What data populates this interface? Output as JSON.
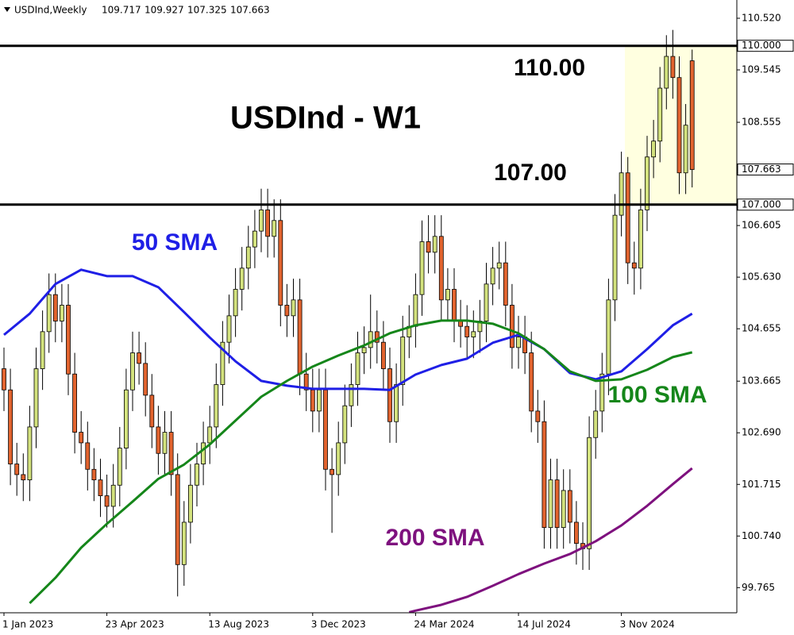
{
  "chart_data": {
    "type": "candlestick",
    "title": "USDInd - W1",
    "symbol": "USDInd,Weekly",
    "categories": [
      "1 Jan 2023",
      null,
      null,
      null,
      null,
      null,
      null,
      null,
      null,
      null,
      null,
      null,
      null,
      null,
      null,
      null,
      "23 Apr 2023",
      null,
      null,
      null,
      null,
      null,
      null,
      null,
      null,
      null,
      null,
      null,
      null,
      null,
      null,
      null,
      "13 Aug 2023",
      null,
      null,
      null,
      null,
      null,
      null,
      null,
      null,
      null,
      null,
      null,
      null,
      null,
      null,
      null,
      "3 Dec 2023",
      null,
      null,
      null,
      null,
      null,
      null,
      null,
      null,
      null,
      null,
      null,
      null,
      null,
      null,
      null,
      "24 Mar 2024",
      null,
      null,
      null,
      null,
      null,
      null,
      null,
      null,
      null,
      null,
      null,
      null,
      null,
      null,
      null,
      "14 Jul 2024",
      null,
      null,
      null,
      null,
      null,
      null,
      null,
      null,
      null,
      null,
      null,
      null,
      null,
      null,
      null,
      "3 Nov 2024",
      null,
      null,
      null,
      null,
      null,
      null,
      null,
      null,
      null,
      null,
      null
    ],
    "open": [
      103.9,
      103.5,
      102.1,
      101.9,
      101.8,
      102.8,
      103.9,
      104.6,
      105.3,
      104.8,
      105.1,
      103.8,
      102.7,
      102.5,
      102.0,
      101.8,
      101.5,
      101.3,
      101.7,
      102.4,
      103.5,
      104.2,
      104.0,
      103.4,
      102.8,
      102.3,
      102.7,
      101.9,
      100.2,
      101.0,
      101.7,
      102.1,
      102.5,
      102.8,
      103.6,
      104.4,
      104.9,
      105.4,
      105.8,
      106.2,
      106.5,
      106.9,
      106.4,
      106.7,
      105.1,
      104.9,
      105.2,
      103.8,
      103.5,
      103.1,
      103.5,
      102.0,
      101.9,
      102.5,
      103.2,
      103.6,
      104.2,
      104.3,
      104.6,
      104.4,
      103.9,
      102.9,
      103.6,
      104.5,
      104.7,
      105.3,
      106.3,
      106.1,
      106.4,
      105.2,
      105.4,
      104.8,
      104.7,
      104.5,
      104.6,
      104.8,
      105.5,
      105.8,
      105.9,
      105.1,
      104.3,
      104.5,
      104.2,
      103.1,
      102.9,
      100.9,
      101.8,
      100.9,
      101.6,
      101.0,
      100.6,
      100.5,
      102.6,
      103.1,
      103.8,
      105.2,
      106.8,
      107.6,
      105.9,
      105.8,
      106.9,
      107.9,
      108.2,
      109.2,
      109.8,
      109.4,
      107.6,
      109.717
    ],
    "high": [
      104.3,
      103.9,
      102.5,
      102.3,
      103.2,
      104.3,
      105.0,
      105.7,
      105.7,
      105.5,
      105.5,
      104.2,
      103.1,
      102.9,
      102.4,
      102.2,
      101.9,
      102.1,
      102.8,
      103.9,
      104.6,
      104.6,
      104.4,
      103.8,
      103.2,
      103.1,
      103.1,
      102.3,
      101.4,
      102.1,
      102.5,
      102.9,
      103.2,
      104.0,
      104.8,
      105.3,
      105.8,
      106.2,
      106.6,
      106.9,
      107.3,
      107.3,
      107.1,
      107.1,
      105.5,
      105.6,
      105.6,
      104.2,
      103.9,
      103.9,
      103.9,
      102.4,
      102.9,
      103.6,
      104.0,
      104.6,
      104.7,
      105.3,
      105.0,
      104.8,
      104.3,
      104.0,
      104.9,
      105.1,
      105.7,
      106.7,
      106.8,
      106.8,
      106.8,
      105.8,
      105.8,
      105.2,
      105.1,
      105.0,
      105.2,
      105.9,
      106.2,
      106.3,
      106.3,
      105.5,
      104.9,
      104.9,
      104.6,
      103.5,
      103.3,
      102.2,
      102.2,
      102.0,
      102.0,
      101.4,
      101.0,
      103.0,
      103.5,
      104.2,
      105.6,
      107.2,
      108.0,
      107.9,
      106.3,
      107.3,
      108.3,
      108.6,
      109.6,
      110.2,
      110.3,
      109.8,
      108.9,
      109.927
    ],
    "low": [
      103.1,
      101.7,
      101.5,
      101.4,
      101.4,
      102.4,
      103.5,
      104.2,
      104.4,
      104.4,
      103.4,
      102.3,
      102.1,
      101.6,
      101.4,
      101.1,
      100.9,
      100.9,
      101.3,
      102.0,
      103.1,
      103.6,
      103.0,
      102.4,
      101.9,
      101.9,
      101.5,
      99.6,
      99.8,
      100.6,
      101.3,
      101.7,
      102.1,
      102.4,
      103.2,
      104.0,
      104.5,
      105.0,
      105.4,
      105.8,
      106.1,
      106.0,
      106.0,
      104.7,
      104.5,
      104.5,
      103.4,
      103.1,
      102.7,
      102.7,
      101.6,
      100.8,
      101.5,
      102.1,
      102.8,
      103.2,
      103.8,
      103.9,
      104.0,
      103.5,
      102.5,
      102.5,
      103.2,
      104.1,
      104.3,
      104.9,
      105.7,
      105.7,
      104.8,
      104.8,
      104.4,
      104.3,
      104.1,
      104.1,
      104.2,
      104.4,
      105.1,
      105.4,
      104.7,
      103.9,
      103.9,
      103.8,
      102.7,
      102.5,
      100.5,
      100.5,
      100.5,
      100.5,
      100.6,
      100.2,
      100.1,
      100.1,
      102.2,
      102.7,
      103.4,
      104.8,
      106.4,
      105.5,
      105.3,
      105.4,
      106.5,
      107.5,
      107.8,
      108.8,
      109.0,
      107.2,
      107.2,
      107.325
    ],
    "close": [
      103.5,
      102.1,
      101.9,
      101.8,
      102.8,
      103.9,
      104.6,
      105.3,
      104.8,
      105.1,
      103.8,
      102.7,
      102.5,
      102.0,
      101.8,
      101.5,
      101.3,
      101.7,
      102.4,
      103.5,
      104.2,
      104.0,
      103.4,
      102.8,
      102.3,
      102.7,
      101.9,
      100.2,
      101.0,
      101.7,
      102.1,
      102.5,
      102.8,
      103.6,
      104.4,
      104.9,
      105.4,
      105.8,
      106.2,
      106.5,
      106.9,
      106.4,
      106.7,
      105.1,
      104.9,
      105.2,
      103.8,
      103.5,
      103.1,
      103.5,
      102.0,
      101.9,
      102.5,
      103.2,
      103.6,
      104.2,
      104.3,
      104.6,
      104.4,
      103.9,
      102.9,
      103.6,
      104.5,
      104.7,
      105.3,
      106.3,
      106.1,
      106.4,
      105.2,
      105.4,
      104.8,
      104.7,
      104.5,
      104.6,
      104.8,
      105.5,
      105.8,
      105.9,
      105.1,
      104.3,
      104.5,
      104.2,
      103.1,
      102.9,
      100.9,
      101.8,
      100.9,
      101.6,
      101.0,
      100.6,
      100.5,
      102.6,
      103.1,
      103.8,
      105.2,
      106.8,
      107.6,
      105.9,
      105.8,
      106.9,
      107.9,
      108.2,
      109.2,
      109.8,
      109.4,
      107.6,
      108.5,
      107.663
    ],
    "up_color": "#d3e27e",
    "down_color": "#e2642f",
    "series": [
      {
        "name": "50 SMA",
        "color": "#1f1fe6",
        "x": [
          0,
          4,
          8,
          12,
          16,
          20,
          24,
          28,
          32,
          36,
          40,
          44,
          48,
          52,
          56,
          60,
          64,
          68,
          72,
          76,
          80,
          84,
          88,
          92,
          96,
          100,
          104,
          107
        ],
        "values": [
          104.54,
          104.94,
          105.5,
          105.77,
          105.65,
          105.65,
          105.44,
          104.97,
          104.49,
          104.04,
          103.67,
          103.58,
          103.52,
          103.52,
          103.52,
          103.5,
          103.79,
          103.97,
          104.09,
          104.39,
          104.54,
          104.27,
          103.82,
          103.7,
          103.85,
          104.27,
          104.72,
          104.94
        ]
      },
      {
        "name": "100 SMA",
        "color": "#15861a",
        "x": [
          4,
          8,
          12,
          16,
          20,
          24,
          28,
          32,
          36,
          40,
          44,
          48,
          52,
          56,
          60,
          64,
          68,
          72,
          76,
          80,
          84,
          88,
          92,
          96,
          100,
          104,
          107
        ],
        "values": [
          99.47,
          99.95,
          100.52,
          100.97,
          101.39,
          101.82,
          102.09,
          102.47,
          102.92,
          103.37,
          103.67,
          103.94,
          104.15,
          104.34,
          104.57,
          104.72,
          104.81,
          104.81,
          104.75,
          104.57,
          104.27,
          103.85,
          103.67,
          103.7,
          103.88,
          104.12,
          104.21
        ]
      },
      {
        "name": "200 SMA",
        "color": "#7e117e",
        "x": [
          63,
          64,
          68,
          72,
          76,
          80,
          84,
          88,
          92,
          96,
          100,
          104,
          107
        ],
        "values": [
          99.3,
          99.33,
          99.44,
          99.59,
          99.8,
          100.02,
          100.22,
          100.4,
          100.64,
          100.94,
          101.31,
          101.72,
          102.02
        ]
      }
    ],
    "levels": [
      {
        "value": 110,
        "label": "110.000",
        "annotation": "110.00"
      },
      {
        "value": 107,
        "label": "107.000",
        "annotation": "107.00"
      }
    ],
    "ylim": [
      99.29,
      110.865
    ],
    "yticks": [
      {
        "value": 110.52,
        "label": "110.520"
      },
      {
        "value": 109.545,
        "label": "109.545"
      },
      {
        "value": 108.555,
        "label": "108.555"
      },
      {
        "value": 106.605,
        "label": "106.605"
      },
      {
        "value": 105.63,
        "label": "105.630"
      },
      {
        "value": 104.655,
        "label": "104.655"
      },
      {
        "value": 103.665,
        "label": "103.665"
      },
      {
        "value": 102.69,
        "label": "102.690"
      },
      {
        "value": 101.715,
        "label": "101.715"
      },
      {
        "value": 100.74,
        "label": "100.740"
      },
      {
        "value": 99.765,
        "label": "99.765"
      }
    ]
  }
}
